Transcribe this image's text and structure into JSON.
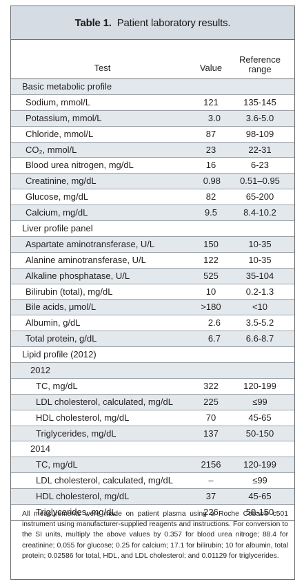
{
  "table": {
    "title_label": "Table 1.",
    "title_text": "Patient laboratory results.",
    "col_test": "Test",
    "col_value": "Value",
    "col_ref_line1": "Reference",
    "col_ref_line2": "range",
    "rows": [
      {
        "label": "Basic metabolic profile",
        "value": "",
        "ref": "",
        "kind": "section",
        "shade": true
      },
      {
        "label": "Sodium, mmol/L",
        "value": "121",
        "ref": "135-145",
        "kind": "item",
        "shade": false
      },
      {
        "label": "Potassium, mmol/L",
        "value": "3.0",
        "ref": "3.6-5.0",
        "kind": "item",
        "shade": true,
        "right": true
      },
      {
        "label": "Chloride, mmol/L",
        "value": "87",
        "ref": "98-109",
        "kind": "item",
        "shade": false
      },
      {
        "label": "CO₂, mmol/L",
        "value": "23",
        "ref": "22-31",
        "kind": "item",
        "shade": true
      },
      {
        "label": "Blood urea nitrogen, mg/dL",
        "value": "16",
        "ref": "6-23",
        "kind": "item",
        "shade": false
      },
      {
        "label": "Creatinine, mg/dL",
        "value": "0.98",
        "ref": "0.51–0.95",
        "kind": "item",
        "shade": true,
        "right": true
      },
      {
        "label": "Glucose, mg/dL",
        "value": "82",
        "ref": "65-200",
        "kind": "item",
        "shade": false
      },
      {
        "label": "Calcium, mg/dL",
        "value": "9.5",
        "ref": "8.4-10.2",
        "kind": "item",
        "shade": true
      },
      {
        "label": "Liver profile panel",
        "value": "",
        "ref": "",
        "kind": "section",
        "shade": false
      },
      {
        "label": "Aspartate aminotransferase, U/L",
        "value": "150",
        "ref": "10-35",
        "kind": "item",
        "shade": true
      },
      {
        "label": "Alanine aminotransferase, U/L",
        "value": "122",
        "ref": "10-35",
        "kind": "item",
        "shade": false
      },
      {
        "label": "Alkaline phosphatase, U/L",
        "value": "525",
        "ref": "35-104",
        "kind": "item",
        "shade": true
      },
      {
        "label": "Bilirubin (total), mg/dL",
        "value": "10",
        "ref": "0.2-1.3",
        "kind": "item",
        "shade": false
      },
      {
        "label": "Bile acids, μmol/L",
        "value": ">180",
        "ref": "<10",
        "kind": "item",
        "shade": true
      },
      {
        "label": "Albumin, g/dL",
        "value": "2.6",
        "ref": "3.5-5.2",
        "kind": "item",
        "shade": false,
        "right": true
      },
      {
        "label": "Total protein, g/dL",
        "value": "6.7",
        "ref": "6.6-8.7",
        "kind": "item",
        "shade": true,
        "right": true
      },
      {
        "label": "Lipid profile (2012)",
        "value": "",
        "ref": "",
        "kind": "section",
        "shade": false
      },
      {
        "label": "2012",
        "value": "",
        "ref": "",
        "kind": "sub",
        "shade": true
      },
      {
        "label": "TC, mg/dL",
        "value": "322",
        "ref": "120-199",
        "kind": "subitem",
        "shade": false
      },
      {
        "label": "LDL cholesterol, calculated, mg/dL",
        "value": "225",
        "ref": "≤99",
        "kind": "subitem",
        "shade": true
      },
      {
        "label": "HDL cholesterol, mg/dL",
        "value": "70",
        "ref": "45-65",
        "kind": "subitem",
        "shade": false
      },
      {
        "label": "Triglycerides, mg/dL",
        "value": "137",
        "ref": "50-150",
        "kind": "subitem",
        "shade": true
      },
      {
        "label": "2014",
        "value": "",
        "ref": "",
        "kind": "sub",
        "shade": false
      },
      {
        "label": "TC, mg/dL",
        "value": "2156",
        "ref": "120-199",
        "kind": "subitem",
        "shade": true
      },
      {
        "label": "LDL cholesterol, calculated, mg/dL",
        "value": "–",
        "ref": "≤99",
        "kind": "subitem",
        "shade": false
      },
      {
        "label": "HDL cholesterol, mg/dL",
        "value": "37",
        "ref": "45-65",
        "kind": "subitem",
        "shade": true
      },
      {
        "label": "Triglycerides, mg/dL",
        "value": "226",
        "ref": "50-150",
        "kind": "subitem",
        "shade": false
      }
    ],
    "footnote": "All measurements were made on patient plasma using a Roche Cobas® c501 instrument using manufacturer-supplied reagents and instructions. For conversion to the SI units, multiply the above values by 0.357 for blood urea nitroge; 88.4 for creatinine; 0.055 for glucose; 0.25 for calcium; 17.1 for bilirubin; 10 for albumin, total protein; 0.02586 for total, HDL, and LDL cholesterol; and 0.01129 for triglycerides."
  },
  "colors": {
    "title_bg": "#d5dce3",
    "row_shade": "#e3e8ed",
    "border": "#6f6f6f"
  }
}
